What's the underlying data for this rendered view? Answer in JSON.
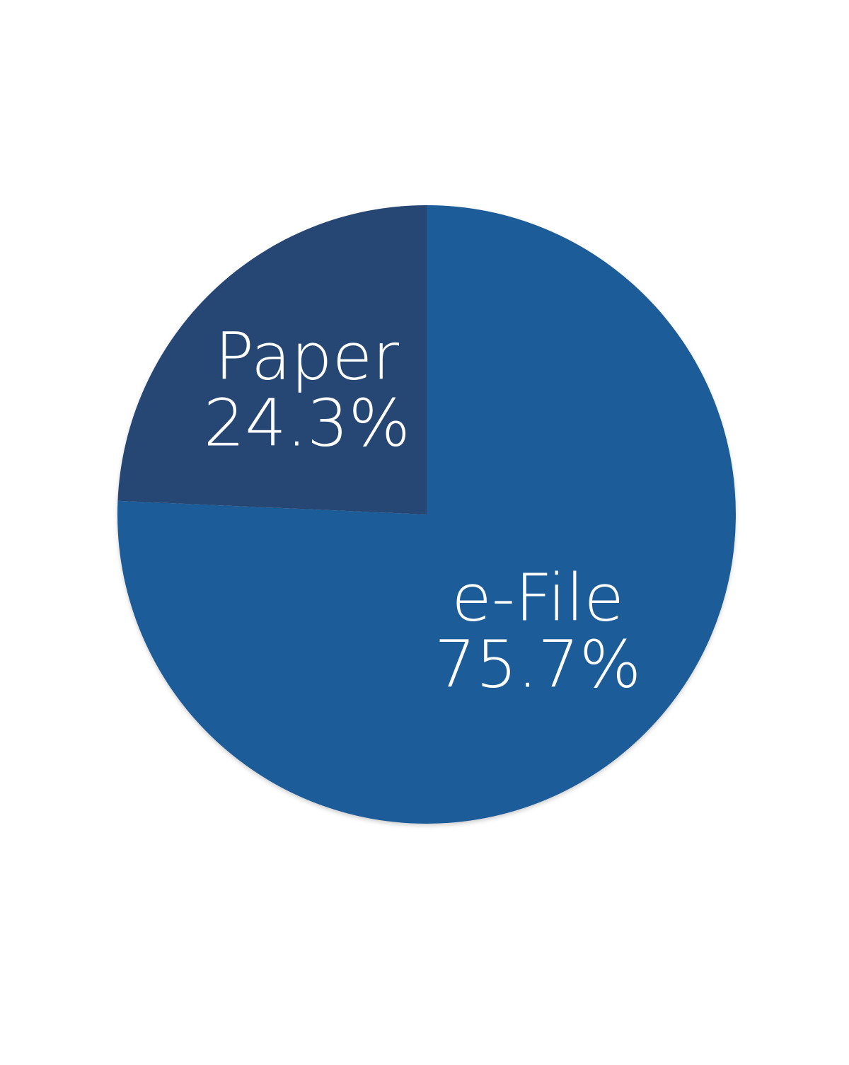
{
  "chart_data": {
    "type": "pie",
    "slices": [
      {
        "label": "e-File",
        "value": 75.7,
        "display": "75.7%",
        "color": "#1f5b98"
      },
      {
        "label": "Paper",
        "value": 24.3,
        "display": "24.3%",
        "color": "#264673"
      }
    ]
  }
}
